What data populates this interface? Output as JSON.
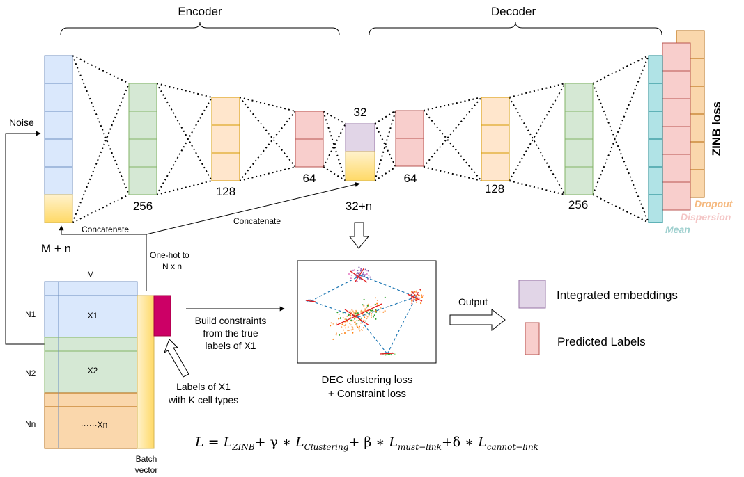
{
  "colors": {
    "blue_fill": "#dae8fc",
    "blue_stroke": "#6c8ebf",
    "green_fill": "#d5e8d4",
    "green_stroke": "#82b366",
    "orange_fill": "#ffe6cc",
    "orange_stroke": "#d79b00",
    "red_fill": "#f8cecc",
    "red_stroke": "#b85450",
    "purple_fill": "#e1d5e7",
    "purple_stroke": "#9673a6",
    "teal_fill": "#b0e3e6",
    "teal_stroke": "#0e8088",
    "peach_fill": "#fad7ac",
    "peach_stroke": "#b46504",
    "magenta": "#cc0066",
    "dropout_color": "#f5b97f",
    "dispersion_color": "#f4c6c6",
    "mean_color": "#9fd0cf"
  },
  "encoder": {
    "title": "Encoder",
    "layer_sizes": [
      "256",
      "128",
      "64"
    ]
  },
  "decoder": {
    "title": "Decoder",
    "layer_sizes": [
      "64",
      "128",
      "256"
    ]
  },
  "bottleneck": {
    "top_label": "32",
    "bottom_label": "32+n"
  },
  "input": {
    "noise_label": "Noise",
    "size_label": "M + n",
    "concatenate_label": "Concatenate"
  },
  "concat2_label": "Concatenate",
  "onehot_label": [
    "One-hot to",
    "N x n"
  ],
  "zinb": {
    "loss_label": "ZINB loss",
    "dropout": "Dropout",
    "dispersion": "Dispersion",
    "mean": "Mean"
  },
  "matrix": {
    "col_label": "M",
    "rows": [
      {
        "name": "N1",
        "block": "X1"
      },
      {
        "name": "N2",
        "block": "X2"
      },
      {
        "name": "Nn",
        "block": "······Xn"
      }
    ],
    "batch_label": [
      "Batch",
      "vector"
    ]
  },
  "constraints_label": [
    "Build constraints",
    "from the true",
    "labels of X1"
  ],
  "labels_label": [
    "Labels of X1",
    "with K cell types"
  ],
  "dec_label": [
    "DEC clustering loss",
    "+ Constraint loss"
  ],
  "output_label": "Output",
  "legend": {
    "embeddings": "Integrated embeddings",
    "labels": "Predicted Labels"
  },
  "formula": {
    "lhs": "L",
    "terms": [
      {
        "sym": "L",
        "sub": "ZINB",
        "op": "+ γ ∗"
      },
      {
        "sym": "L",
        "sub": "Clustering",
        "op": "+ β ∗"
      },
      {
        "sym": "L",
        "sub": "must−link",
        "op": "+δ ∗"
      },
      {
        "sym": "L",
        "sub": "cannot−link",
        "op": ""
      }
    ]
  }
}
